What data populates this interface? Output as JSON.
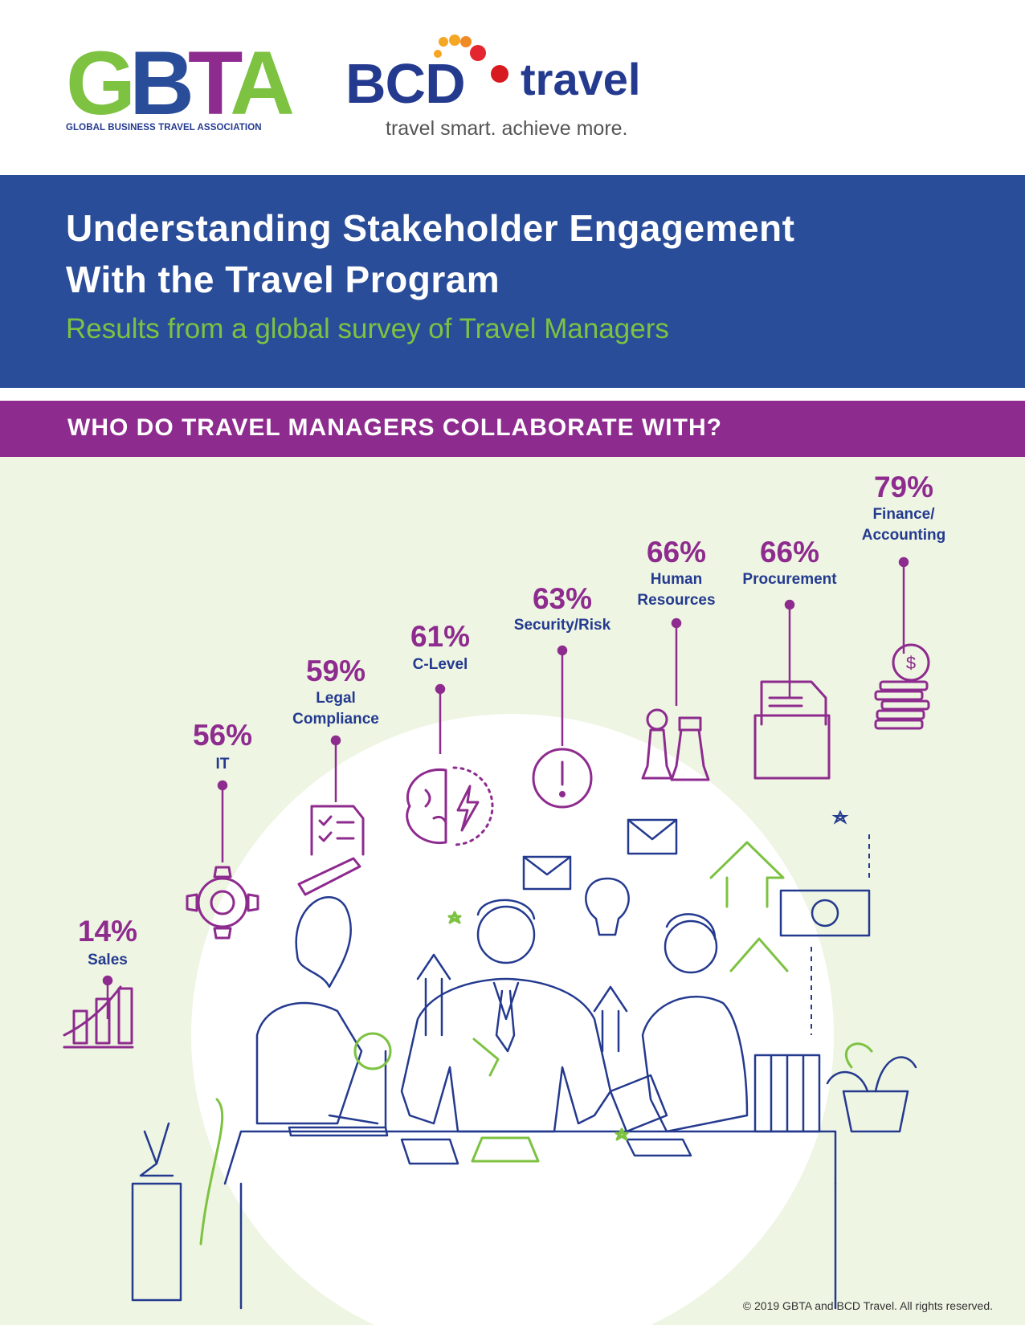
{
  "logos": {
    "gbta": {
      "letters": [
        "G",
        "B",
        "T",
        "A"
      ],
      "tagline": "GLOBAL BUSINESS TRAVEL ASSOCIATION"
    },
    "bcd": {
      "wordmark": "BCD",
      "wordmark_suffix": "travel",
      "tagline": "travel smart. achieve more."
    }
  },
  "header": {
    "title_line1": "Understanding Stakeholder Engagement",
    "title_line2": "With the Travel Program",
    "subtitle": "Results from a global survey of Travel Managers"
  },
  "section": {
    "title": "WHO DO TRAVEL MANAGERS COLLABORATE WITH?"
  },
  "stats": [
    {
      "pct": "14%",
      "label": "Sales",
      "icon": "growth-chart-icon"
    },
    {
      "pct": "56%",
      "label": "IT",
      "icon": "gear-icon"
    },
    {
      "pct": "59%",
      "label": "Legal\nCompliance",
      "icon": "checklist-pencil-icon"
    },
    {
      "pct": "61%",
      "label": "C-Level",
      "icon": "brain-lightning-icon"
    },
    {
      "pct": "63%",
      "label": "Security/Risk",
      "icon": "alert-icon"
    },
    {
      "pct": "66%",
      "label": "Human\nResources",
      "icon": "chess-pieces-icon"
    },
    {
      "pct": "66%",
      "label": "Procurement",
      "icon": "folder-documents-icon"
    },
    {
      "pct": "79%",
      "label": "Finance/\nAccounting",
      "icon": "coins-icon"
    }
  ],
  "colors": {
    "blue": "#2a4d9a",
    "navy": "#243a8f",
    "purple": "#8e2b8e",
    "green": "#7dc241",
    "panel": "#eef5e3"
  },
  "footer": {
    "copyright": "© 2019 GBTA and BCD Travel. All rights reserved."
  }
}
